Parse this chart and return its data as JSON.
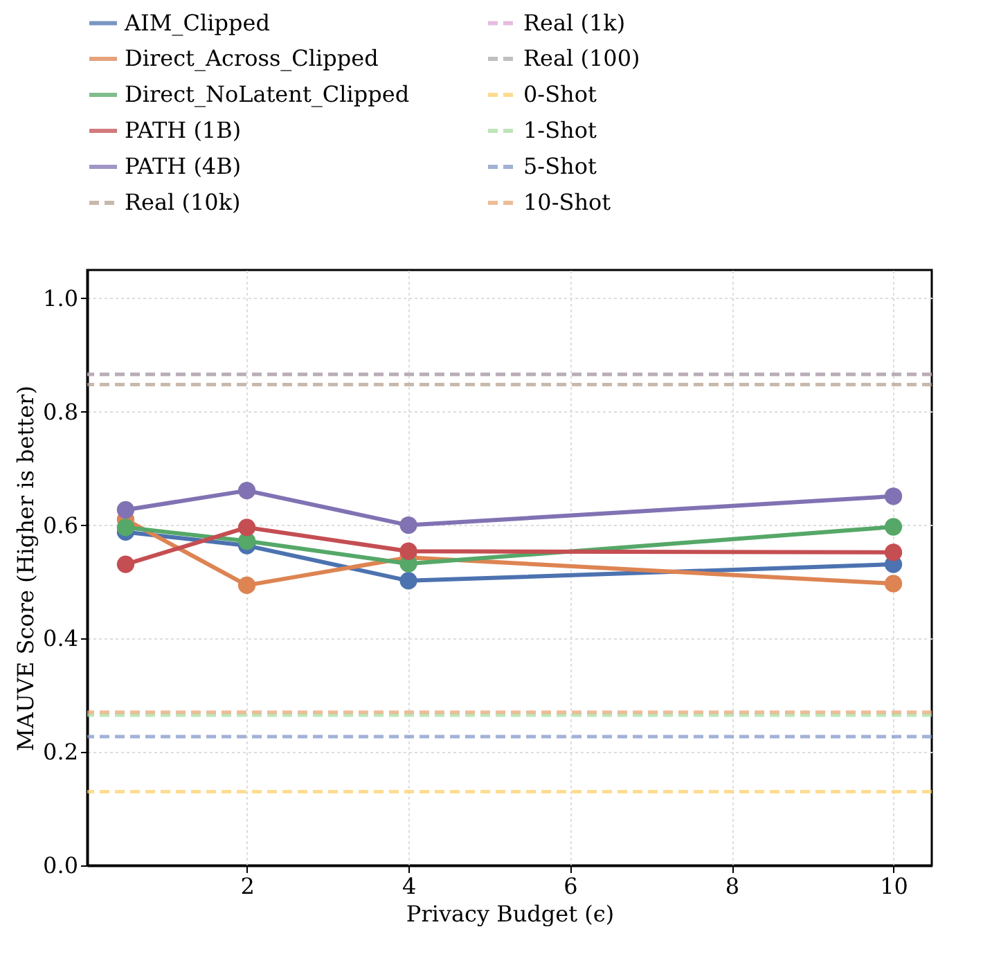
{
  "chart_data": {
    "type": "line",
    "xlabel": "Privacy Budget (ϵ)",
    "ylabel": "MAUVE Score (Higher is better)",
    "x": [
      0.5,
      2,
      4,
      10
    ],
    "series": [
      {
        "name": "AIM_Clipped",
        "color": "#4c72b0",
        "values": [
          0.588,
          0.564,
          0.502,
          0.531
        ]
      },
      {
        "name": "Direct_Across_Clipped",
        "color": "#dd8452",
        "values": [
          0.61,
          0.494,
          0.543,
          0.497
        ]
      },
      {
        "name": "Direct_NoLatent_Clipped",
        "color": "#55a868",
        "values": [
          0.596,
          0.572,
          0.532,
          0.597
        ]
      },
      {
        "name": "PATH (1B)",
        "color": "#c44e52",
        "values": [
          0.531,
          0.596,
          0.554,
          0.552
        ]
      },
      {
        "name": "PATH (4B)",
        "color": "#8172b3",
        "values": [
          0.627,
          0.661,
          0.6,
          0.651
        ]
      }
    ],
    "ref_lines": [
      {
        "axis": "y",
        "value": 0.848,
        "label": "Real (10k)",
        "color": "#b5a292",
        "line_style": "dashed"
      },
      {
        "axis": "y",
        "value": 0.866,
        "label": "Real (1k)",
        "color": "#dda6d6",
        "line_style": "dashed"
      },
      {
        "axis": "y",
        "value": 0.866,
        "label": "Real (100)",
        "color": "#aaaaaa",
        "line_style": "dashed"
      },
      {
        "axis": "y",
        "value": 0.13,
        "label": "0-Shot",
        "color": "#fdd06b",
        "line_style": "dashed"
      },
      {
        "axis": "y",
        "value": 0.265,
        "label": "1-Shot",
        "color": "#a9dda0",
        "line_style": "dashed"
      },
      {
        "axis": "y",
        "value": 0.227,
        "label": "5-Shot",
        "color": "#8198c8",
        "line_style": "dashed"
      },
      {
        "axis": "y",
        "value": 0.27,
        "label": "10-Shot",
        "color": "#e8a677",
        "line_style": "dashed"
      }
    ],
    "xlim": [
      0.025,
      10.475
    ],
    "xticks": [
      2,
      4,
      6,
      8,
      10
    ],
    "ylim": [
      0,
      1.05
    ],
    "yticks": [
      {
        "value": 0,
        "label": "0.0"
      },
      {
        "value": 0.2,
        "label": "0.2"
      },
      {
        "value": 0.4,
        "label": "0.4"
      },
      {
        "value": 0.6,
        "label": "0.6"
      },
      {
        "value": 0.8,
        "label": "0.8"
      },
      {
        "value": 1,
        "label": "1.0"
      }
    ],
    "grid": true,
    "legend": "top",
    "marker": "circle",
    "line_style": "solid"
  }
}
